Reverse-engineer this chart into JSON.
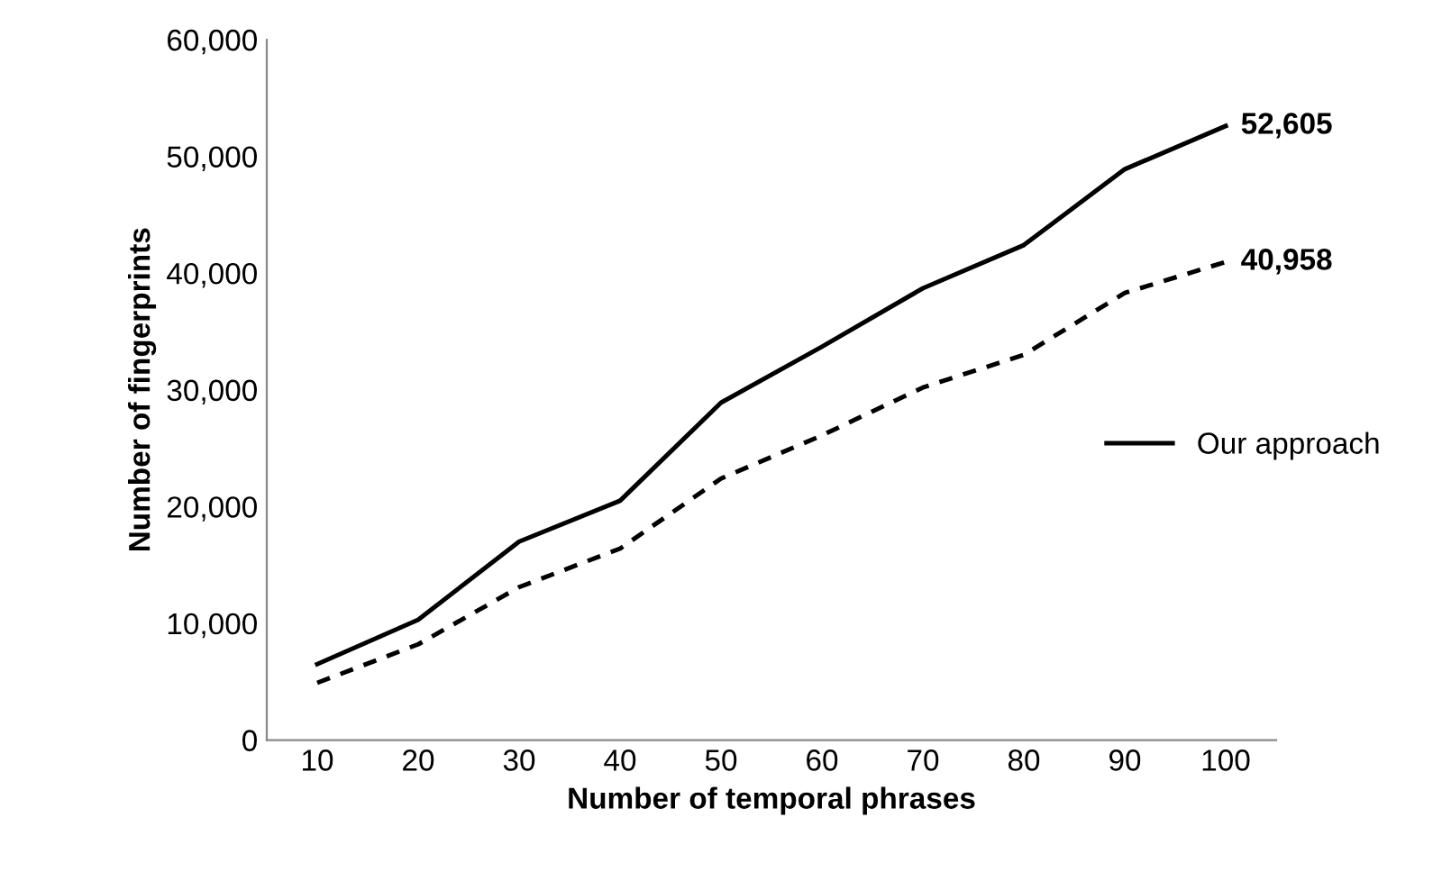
{
  "chart_data": {
    "type": "line",
    "xlabel": "Number of temporal phrases",
    "ylabel": "Number of fingerprints",
    "categories": [
      "10",
      "20",
      "30",
      "40",
      "50",
      "60",
      "70",
      "80",
      "90",
      "100"
    ],
    "series": [
      {
        "name": "Our approach",
        "color": "#000000",
        "line_style": "solid",
        "values": [
          6500,
          10300,
          17000,
          20500,
          28900,
          33700,
          38700,
          42400,
          48900,
          52605
        ],
        "value_labels": [
          null,
          null,
          null,
          null,
          null,
          null,
          null,
          null,
          null,
          "52,605"
        ]
      },
      {
        "color": "#000000",
        "line_style": "dashed",
        "values": [
          4900,
          8200,
          13100,
          16400,
          22400,
          26100,
          30200,
          33000,
          38300,
          40958
        ],
        "value_labels": [
          null,
          null,
          null,
          null,
          null,
          null,
          null,
          null,
          null,
          "40,958"
        ]
      }
    ],
    "ylim": [
      0,
      60000
    ],
    "yticks": [
      {
        "value": 0,
        "label": "0"
      },
      {
        "value": 10000,
        "label": "10,000"
      },
      {
        "value": 20000,
        "label": "20,000"
      },
      {
        "value": 30000,
        "label": "30,000"
      },
      {
        "value": 40000,
        "label": "40,000"
      },
      {
        "value": 50000,
        "label": "50,000"
      },
      {
        "value": 60000,
        "label": "60,000"
      }
    ],
    "grid": false,
    "legend": "right",
    "marker": "none"
  }
}
